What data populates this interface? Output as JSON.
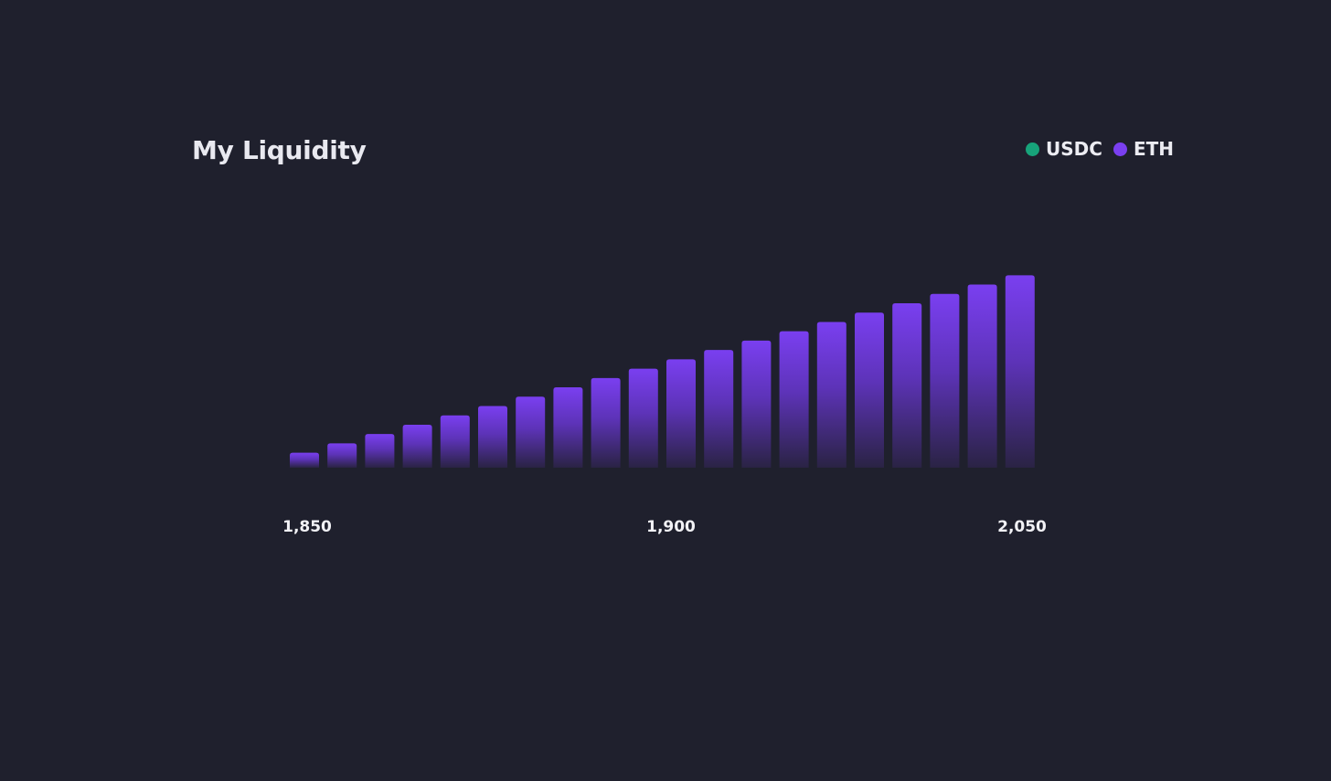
{
  "title": "My Liquidity",
  "legend": {
    "items": [
      {
        "label": "USDC",
        "color": "#17a37a"
      },
      {
        "label": "ETH",
        "color": "#7a3ff0"
      }
    ]
  },
  "chart_data": {
    "type": "bar",
    "bar_color": "#7a3ff0",
    "x_ticks": [
      "1,850",
      "1,900",
      "2,050"
    ],
    "series": [
      {
        "name": "ETH",
        "values": [
          0.8,
          1.3,
          1.8,
          2.3,
          2.8,
          3.3,
          3.8,
          4.3,
          4.8,
          5.3,
          5.8,
          6.3,
          6.8,
          7.3,
          7.8,
          8.3,
          8.8,
          9.3,
          9.8,
          10.3
        ]
      }
    ],
    "ylim": [
      0,
      11
    ],
    "grid": false,
    "legend_position": "top-right"
  }
}
